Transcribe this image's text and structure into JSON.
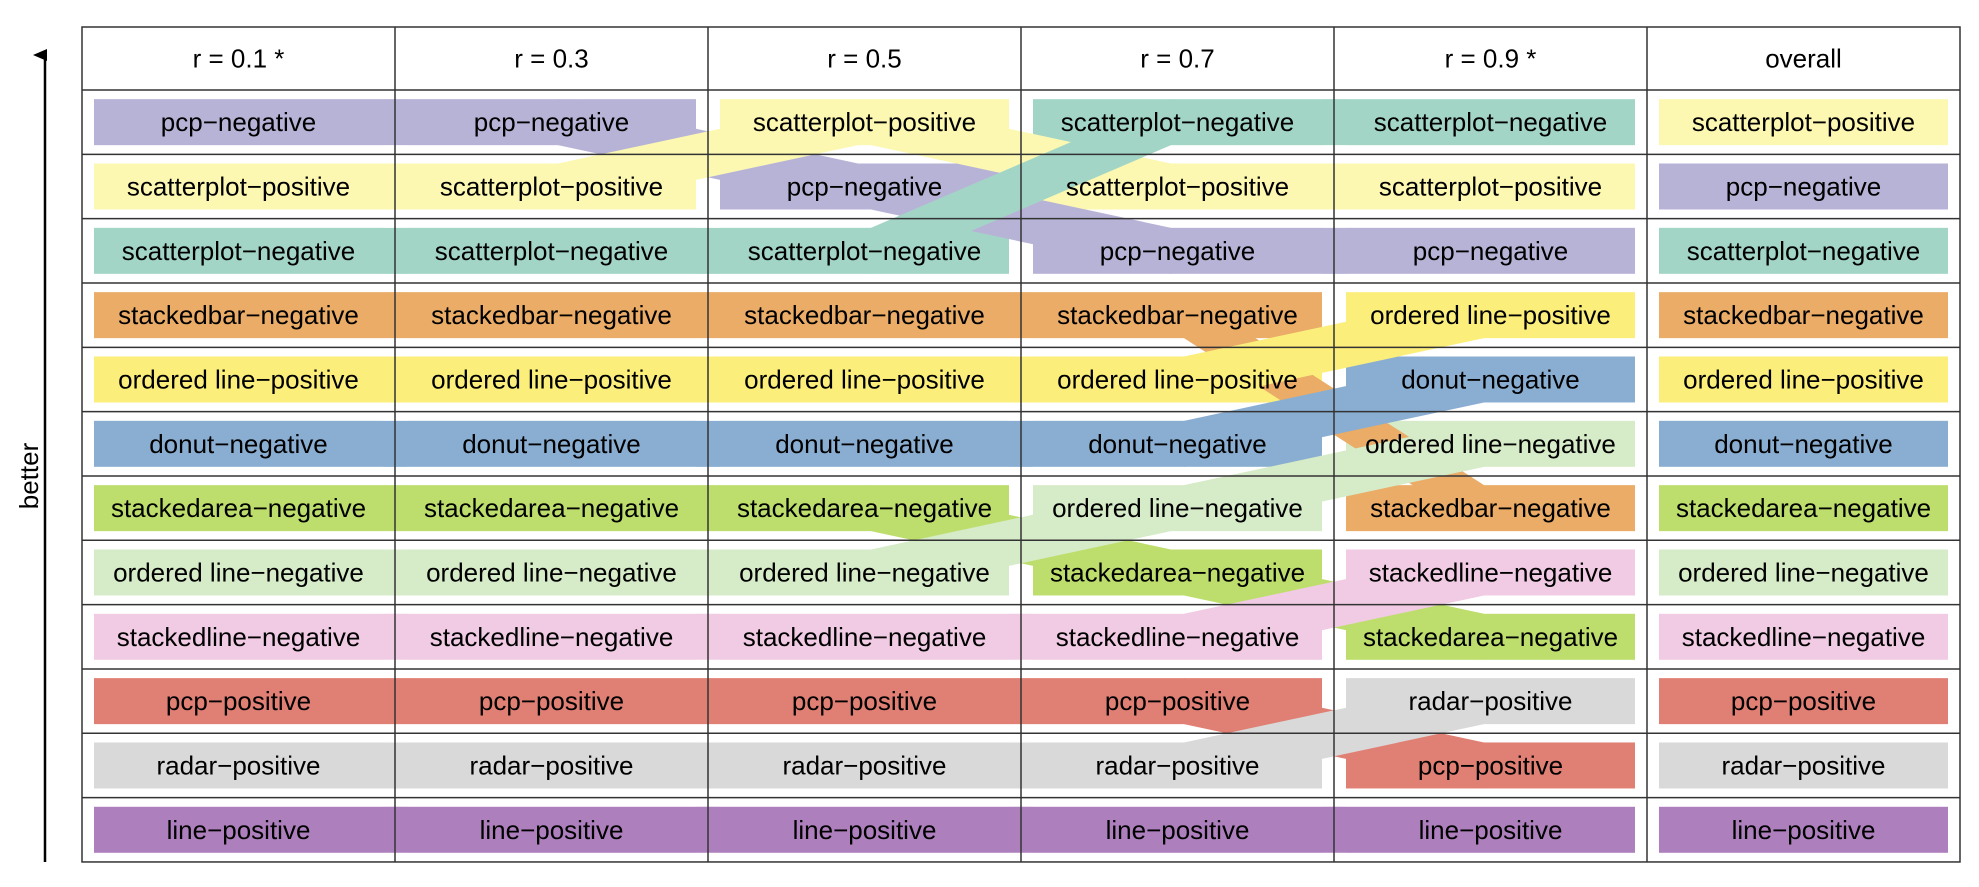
{
  "axis_label": "better",
  "columns": [
    "r = 0.1 *",
    "r = 0.3",
    "r = 0.5",
    "r = 0.7",
    "r = 0.9 *",
    "overall"
  ],
  "categories": {
    "pcp-negative": {
      "label": "pcp−negative",
      "color": "#b7b3d7"
    },
    "scatterplot-positive": {
      "label": "scatterplot−positive",
      "color": "#fcf8b2"
    },
    "scatterplot-negative": {
      "label": "scatterplot−negative",
      "color": "#a2d5c6"
    },
    "stackedbar-negative": {
      "label": "stackedbar−negative",
      "color": "#eaac67"
    },
    "ordered-line-positive": {
      "label": "ordered line−positive",
      "color": "#fbee7b"
    },
    "donut-negative": {
      "label": "donut−negative",
      "color": "#8aaed2"
    },
    "stackedarea-negative": {
      "label": "stackedarea−negative",
      "color": "#bdde6c"
    },
    "ordered-line-negative": {
      "label": "ordered line−negative",
      "color": "#d6ebc7"
    },
    "stackedline-negative": {
      "label": "stackedline−negative",
      "color": "#f0cbe3"
    },
    "pcp-positive": {
      "label": "pcp−positive",
      "color": "#e07f73"
    },
    "radar-positive": {
      "label": "radar−positive",
      "color": "#d9d9d9"
    },
    "line-positive": {
      "label": "line−positive",
      "color": "#ad7fbc"
    }
  },
  "rankings": [
    [
      "pcp-negative",
      "scatterplot-positive",
      "scatterplot-negative",
      "stackedbar-negative",
      "ordered-line-positive",
      "donut-negative",
      "stackedarea-negative",
      "ordered-line-negative",
      "stackedline-negative",
      "pcp-positive",
      "radar-positive",
      "line-positive"
    ],
    [
      "pcp-negative",
      "scatterplot-positive",
      "scatterplot-negative",
      "stackedbar-negative",
      "ordered-line-positive",
      "donut-negative",
      "stackedarea-negative",
      "ordered-line-negative",
      "stackedline-negative",
      "pcp-positive",
      "radar-positive",
      "line-positive"
    ],
    [
      "scatterplot-positive",
      "pcp-negative",
      "scatterplot-negative",
      "stackedbar-negative",
      "ordered-line-positive",
      "donut-negative",
      "stackedarea-negative",
      "ordered-line-negative",
      "stackedline-negative",
      "pcp-positive",
      "radar-positive",
      "line-positive"
    ],
    [
      "scatterplot-negative",
      "scatterplot-positive",
      "pcp-negative",
      "stackedbar-negative",
      "ordered-line-positive",
      "donut-negative",
      "ordered-line-negative",
      "stackedarea-negative",
      "stackedline-negative",
      "pcp-positive",
      "radar-positive",
      "line-positive"
    ],
    [
      "scatterplot-negative",
      "scatterplot-positive",
      "pcp-negative",
      "ordered-line-positive",
      "donut-negative",
      "ordered-line-negative",
      "stackedbar-negative",
      "stackedline-negative",
      "stackedarea-negative",
      "radar-positive",
      "pcp-positive",
      "line-positive"
    ],
    [
      "scatterplot-positive",
      "pcp-negative",
      "scatterplot-negative",
      "stackedbar-negative",
      "ordered-line-positive",
      "donut-negative",
      "stackedarea-negative",
      "ordered-line-negative",
      "stackedline-negative",
      "pcp-positive",
      "radar-positive",
      "line-positive"
    ]
  ]
}
